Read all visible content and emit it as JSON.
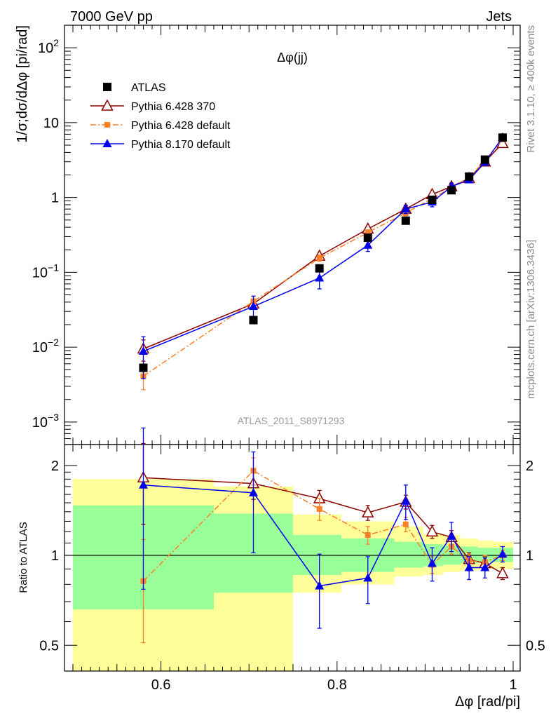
{
  "header": {
    "left": "7000 GeV pp",
    "right": "Jets"
  },
  "side_texts": {
    "rivet": "Rivet 3.1.10, ≥ 400k events",
    "mcplots": "mcplots.cern.ch [arXiv:1306.3436]"
  },
  "chart_data": [
    {
      "type": "scatter",
      "scale": "log",
      "title": "Δφ(jj)",
      "watermark": "ATLAS_2011_S8971293",
      "ylabel": "1/σ;dσ/dΔφ [pi/rad]",
      "xlim": [
        0.5,
        1.0
      ],
      "ylim": [
        0.0005,
        200
      ],
      "yticks": [
        {
          "value": 0.001,
          "base": "10",
          "exp": "−3"
        },
        {
          "value": 0.01,
          "base": "10",
          "exp": "−2"
        },
        {
          "value": 0.1,
          "base": "10",
          "exp": "−1"
        },
        {
          "value": 1,
          "base": "1",
          "exp": ""
        },
        {
          "value": 10,
          "base": "10",
          "exp": ""
        },
        {
          "value": 100,
          "base": "10",
          "exp": "2"
        }
      ],
      "legend_position": "top-left",
      "series": [
        {
          "name": "ATLAS",
          "color": "#000000",
          "marker": "square",
          "line": "none",
          "x": [
            0.58,
            0.705,
            0.78,
            0.835,
            0.878,
            0.908,
            0.93,
            0.95,
            0.968,
            0.988
          ],
          "y": [
            0.0053,
            0.023,
            0.113,
            0.29,
            0.49,
            0.93,
            1.25,
            1.9,
            3.2,
            6.3
          ],
          "err": [
            0.0008,
            0.002,
            0.008,
            0.02,
            0.03,
            0.06,
            0.07,
            0.1,
            0.15,
            0.25
          ]
        },
        {
          "name": "Pythia 6.428 370",
          "color": "#8b0000",
          "marker": "triangle-open",
          "line": "solid",
          "x": [
            0.58,
            0.705,
            0.78,
            0.835,
            0.878,
            0.908,
            0.93,
            0.95,
            0.968,
            0.988
          ],
          "y": [
            0.0095,
            0.038,
            0.165,
            0.38,
            0.7,
            1.1,
            1.4,
            1.8,
            3.0,
            5.3
          ],
          "err": [
            0.003,
            0.005,
            0.015,
            0.03,
            0.05,
            0.07,
            0.08,
            0.1,
            0.15,
            0.2
          ]
        },
        {
          "name": "Pythia 6.428 default",
          "color": "#ff7f27",
          "marker": "square-small",
          "line": "dashdot",
          "x": [
            0.58,
            0.705,
            0.78,
            0.835,
            0.878,
            0.908,
            0.93,
            0.95,
            0.968,
            0.988
          ],
          "y": [
            0.0041,
            0.041,
            0.155,
            0.34,
            0.62,
            0.97,
            1.35,
            1.85,
            3.1,
            6.0
          ],
          "err": [
            0.0014,
            0.007,
            0.015,
            0.03,
            0.05,
            0.07,
            0.08,
            0.1,
            0.15,
            0.2
          ]
        },
        {
          "name": "Pythia 8.170 default",
          "color": "#0000ee",
          "marker": "triangle",
          "line": "solid",
          "x": [
            0.58,
            0.705,
            0.78,
            0.835,
            0.878,
            0.908,
            0.93,
            0.95,
            0.968,
            0.988
          ],
          "y": [
            0.0088,
            0.035,
            0.084,
            0.23,
            0.7,
            0.87,
            1.4,
            1.72,
            2.95,
            6.35
          ],
          "err": [
            0.005,
            0.013,
            0.024,
            0.04,
            0.09,
            0.12,
            0.15,
            0.13,
            0.18,
            0.3
          ]
        }
      ]
    },
    {
      "type": "scatter",
      "scale": "log",
      "ylabel": "Ratio to ATLAS",
      "xlabel": "Δφ [rad/pi]",
      "xlim": [
        0.5,
        1.0
      ],
      "ylim": [
        0.41,
        2.35
      ],
      "reference_line": 1,
      "xticks": [
        {
          "value": 0.6,
          "label": "0.6"
        },
        {
          "value": 0.8,
          "label": "0.8"
        },
        {
          "value": 1.0,
          "label": "1"
        }
      ],
      "yticks": [
        {
          "value": 0.5,
          "label": "0.5"
        },
        {
          "value": 1,
          "label": "1"
        },
        {
          "value": 2,
          "label": "2"
        }
      ],
      "bands": [
        {
          "x0": 0.5,
          "x1": 0.66,
          "green": [
            0.66,
            1.47
          ],
          "yellow": [
            0.41,
            1.8
          ]
        },
        {
          "x0": 0.66,
          "x1": 0.75,
          "green": [
            0.75,
            1.38
          ],
          "yellow": [
            0.41,
            1.7
          ]
        },
        {
          "x0": 0.75,
          "x1": 0.805,
          "green": [
            0.86,
            1.17
          ],
          "yellow": [
            0.75,
            1.37
          ]
        },
        {
          "x0": 0.805,
          "x1": 0.865,
          "green": [
            0.88,
            1.14
          ],
          "yellow": [
            0.8,
            1.3
          ]
        },
        {
          "x0": 0.865,
          "x1": 0.898,
          "green": [
            0.91,
            1.11
          ],
          "yellow": [
            0.85,
            1.25
          ]
        },
        {
          "x0": 0.898,
          "x1": 0.92,
          "green": [
            0.92,
            1.09
          ],
          "yellow": [
            0.86,
            1.18
          ]
        },
        {
          "x0": 0.92,
          "x1": 0.94,
          "green": [
            0.93,
            1.08
          ],
          "yellow": [
            0.88,
            1.17
          ]
        },
        {
          "x0": 0.94,
          "x1": 0.96,
          "green": [
            0.94,
            1.07
          ],
          "yellow": [
            0.89,
            1.14
          ]
        },
        {
          "x0": 0.96,
          "x1": 0.978,
          "green": [
            0.95,
            1.06
          ],
          "yellow": [
            0.9,
            1.12
          ]
        },
        {
          "x0": 0.978,
          "x1": 1.0,
          "green": [
            0.95,
            1.06
          ],
          "yellow": [
            0.9,
            1.11
          ]
        }
      ],
      "series": [
        {
          "name": "Pythia 6.428 370",
          "color": "#8b0000",
          "marker": "triangle-open",
          "line": "solid",
          "x": [
            0.58,
            0.705,
            0.78,
            0.835,
            0.878,
            0.908,
            0.93,
            0.95,
            0.968,
            0.988
          ],
          "y": [
            1.82,
            1.74,
            1.55,
            1.39,
            1.51,
            1.2,
            1.15,
            0.97,
            0.94,
            0.87
          ],
          "err": [
            0.55,
            0.2,
            0.1,
            0.08,
            0.08,
            0.06,
            0.06,
            0.05,
            0.05,
            0.04
          ]
        },
        {
          "name": "Pythia 6.428 default",
          "color": "#ff7f27",
          "marker": "square-small",
          "line": "dashdot",
          "x": [
            0.58,
            0.705,
            0.78,
            0.835,
            0.878,
            0.908,
            0.93,
            0.95,
            0.968,
            0.988
          ],
          "y": [
            0.82,
            1.92,
            1.43,
            1.17,
            1.27,
            0.93,
            1.07,
            0.96,
            0.95,
            1.0
          ],
          "err": [
            0.31,
            0.2,
            0.12,
            0.08,
            0.07,
            0.06,
            0.06,
            0.05,
            0.05,
            0.04
          ]
        },
        {
          "name": "Pythia 8.170 default",
          "color": "#0000ee",
          "marker": "triangle",
          "line": "solid",
          "x": [
            0.58,
            0.705,
            0.78,
            0.835,
            0.878,
            0.908,
            0.93,
            0.95,
            0.968,
            0.988
          ],
          "y": [
            1.72,
            1.62,
            0.79,
            0.84,
            1.52,
            0.94,
            1.16,
            0.91,
            0.91,
            1.01
          ],
          "err": [
            0.95,
            0.6,
            0.22,
            0.15,
            0.2,
            0.12,
            0.13,
            0.08,
            0.07,
            0.06
          ]
        }
      ]
    }
  ]
}
